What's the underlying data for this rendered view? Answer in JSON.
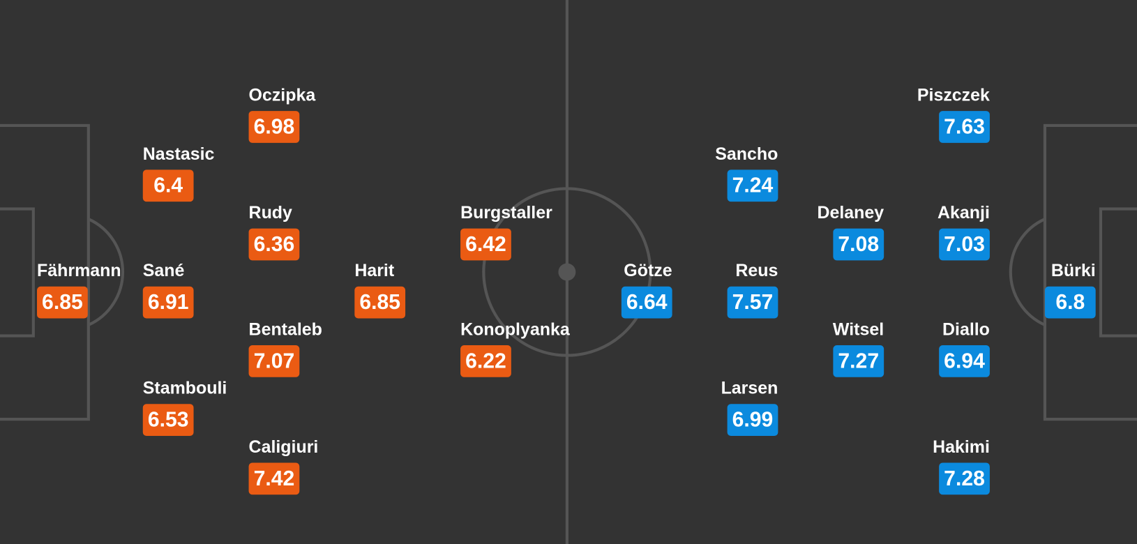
{
  "home": {
    "players": [
      {
        "name": "Fährmann",
        "rating": 6.85
      },
      {
        "name": "Nastasic",
        "rating": 6.4
      },
      {
        "name": "Sané",
        "rating": 6.91
      },
      {
        "name": "Stambouli",
        "rating": 6.53
      },
      {
        "name": "Oczipka",
        "rating": 6.98
      },
      {
        "name": "Rudy",
        "rating": 6.36
      },
      {
        "name": "Bentaleb",
        "rating": 7.07
      },
      {
        "name": "Caligiuri",
        "rating": 7.42
      },
      {
        "name": "Harit",
        "rating": 6.85
      },
      {
        "name": "Burgstaller",
        "rating": 6.42
      },
      {
        "name": "Konoplyanka",
        "rating": 6.22
      }
    ]
  },
  "away": {
    "players": [
      {
        "name": "Götze",
        "rating": 6.64
      },
      {
        "name": "Sancho",
        "rating": 7.24
      },
      {
        "name": "Reus",
        "rating": 7.57
      },
      {
        "name": "Larsen",
        "rating": 6.99
      },
      {
        "name": "Delaney",
        "rating": 7.08
      },
      {
        "name": "Witsel",
        "rating": 7.27
      },
      {
        "name": "Piszczek",
        "rating": 7.63
      },
      {
        "name": "Akanji",
        "rating": 7.03
      },
      {
        "name": "Diallo",
        "rating": 6.94
      },
      {
        "name": "Hakimi",
        "rating": 7.28
      },
      {
        "name": "Bürki",
        "rating": 6.8
      }
    ]
  }
}
